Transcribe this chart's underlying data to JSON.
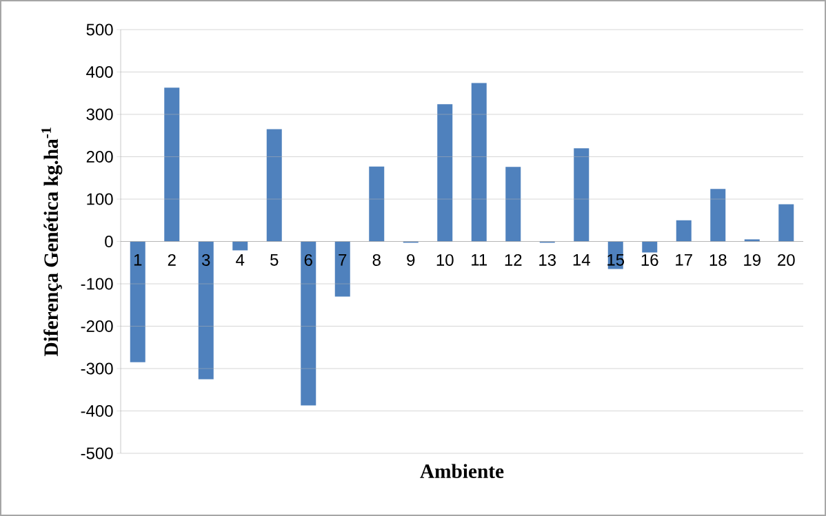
{
  "chart_data": {
    "type": "bar",
    "xlabel": "Ambiente",
    "ylabel": "Diferença Genética kg.ha$^{-1}$",
    "categories": [
      "1",
      "2",
      "3",
      "4",
      "5",
      "6",
      "7",
      "8",
      "9",
      "10",
      "11",
      "12",
      "13",
      "14",
      "15",
      "16",
      "17",
      "18",
      "19",
      "20"
    ],
    "values": [
      -285,
      363,
      -325,
      -21,
      265,
      -387,
      -130,
      177,
      -3,
      324,
      374,
      176,
      -3,
      220,
      -65,
      -26,
      50,
      124,
      5,
      88
    ],
    "color": "#4f81bd",
    "ylim": [
      -500,
      500
    ],
    "yticks": [
      -500,
      -400,
      -300,
      -200,
      -100,
      0,
      100,
      200,
      300,
      400,
      500
    ],
    "grid": "y"
  }
}
